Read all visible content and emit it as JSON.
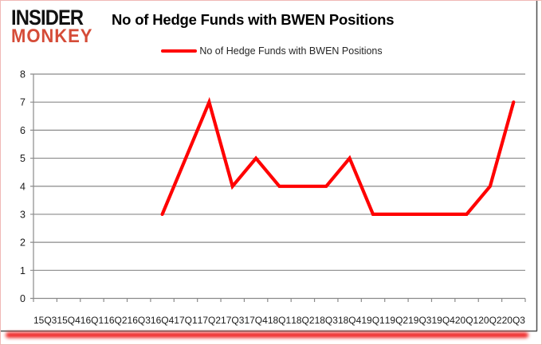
{
  "brand": {
    "line1": "INSIDER",
    "line2": "MONKEY",
    "monkey_color": "#d54c38"
  },
  "legend": {
    "label": "No of Hedge Funds with BWEN Positions"
  },
  "chart_data": {
    "type": "line",
    "title": "No of Hedge Funds with BWEN Positions",
    "xlabel": "",
    "ylabel": "",
    "categories": [
      "15Q3",
      "15Q4",
      "16Q1",
      "16Q2",
      "16Q3",
      "16Q4",
      "17Q1",
      "17Q2",
      "17Q3",
      "17Q4",
      "18Q1",
      "18Q2",
      "18Q3",
      "18Q4",
      "19Q1",
      "19Q2",
      "19Q3",
      "19Q4",
      "20Q1",
      "20Q2",
      "20Q3"
    ],
    "series": [
      {
        "name": "No of Hedge Funds with BWEN Positions",
        "color": "#ff0000",
        "values": [
          null,
          null,
          null,
          null,
          null,
          3,
          5,
          7,
          4,
          5,
          4,
          4,
          4,
          5,
          3,
          3,
          3,
          3,
          3,
          4,
          7
        ]
      }
    ],
    "ylim": [
      0,
      8
    ],
    "ytick_step": 1,
    "grid": true,
    "legend_position": "top-center",
    "grid_color": "#8a8a8a",
    "axis_text_color": "#1a1a1a",
    "border_color": "#4f4f4f"
  }
}
